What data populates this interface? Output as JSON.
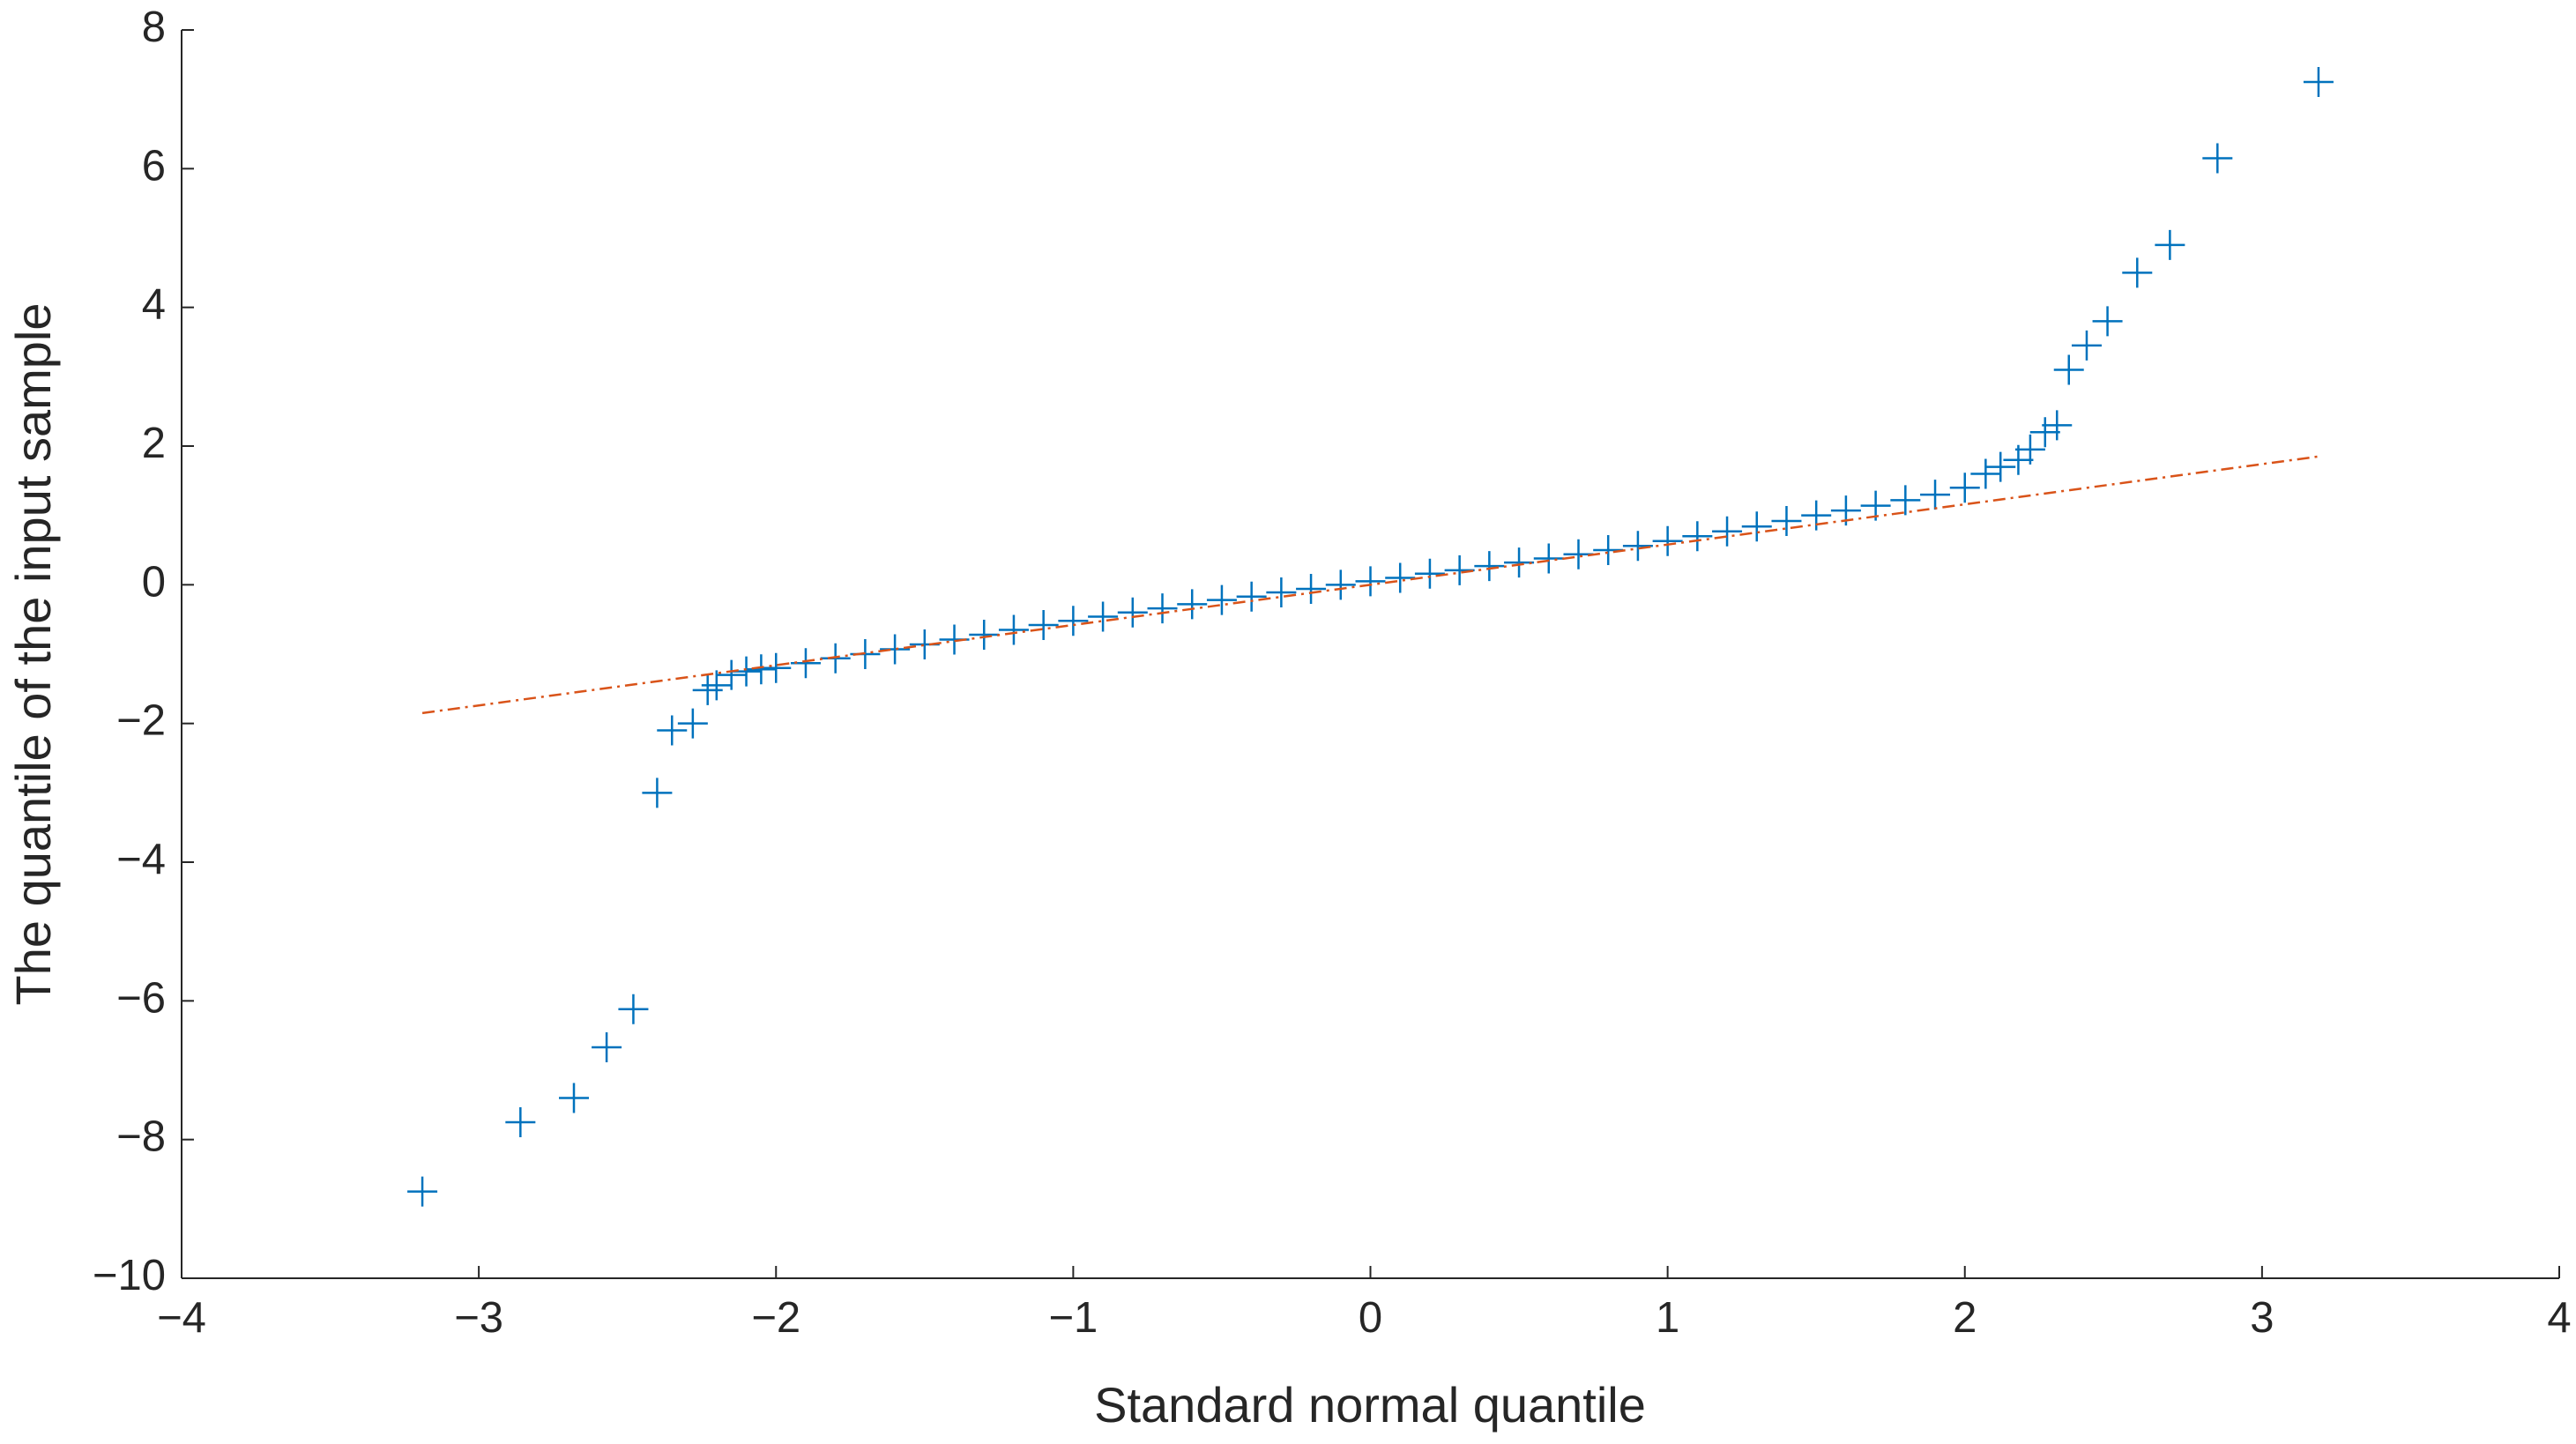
{
  "chart_data": {
    "type": "scatter",
    "xlabel": "Standard normal quantile",
    "ylabel": "The quantile of the input sample",
    "xlim": [
      -4,
      4
    ],
    "xticks": [
      {
        "value": -4,
        "label": "−4"
      },
      {
        "value": -3,
        "label": "−3"
      },
      {
        "value": -2,
        "label": "−2"
      },
      {
        "value": -1,
        "label": "−1"
      },
      0,
      1,
      2,
      3,
      4
    ],
    "ylim": [
      -10,
      8
    ],
    "yticks": [
      {
        "value": -10,
        "label": "−10"
      },
      {
        "value": -8,
        "label": "−8"
      },
      {
        "value": -6,
        "label": "−6"
      },
      {
        "value": -4,
        "label": "−4"
      },
      {
        "value": -2,
        "label": "−2"
      },
      0,
      2,
      4,
      6,
      8
    ],
    "series": [
      {
        "color": "#0072bd",
        "marker": "+",
        "x": [
          -3.19,
          -2.86,
          -2.68,
          -2.57,
          -2.48,
          -2.4,
          -2.35,
          -2.28,
          -2.23,
          -2.2,
          -2.15,
          -2.1,
          -2.05,
          -2.0,
          -1.9,
          -1.8,
          -1.7,
          -1.6,
          -1.5,
          -1.4,
          -1.3,
          -1.2,
          -1.1,
          -1.0,
          -0.9,
          -0.8,
          -0.7,
          -0.6,
          -0.5,
          -0.4,
          -0.3,
          -0.2,
          -0.1,
          0,
          0.1,
          0.2,
          0.3,
          0.4,
          0.5,
          0.6,
          0.7,
          0.8,
          0.9,
          1.0,
          1.1,
          1.2,
          1.3,
          1.4,
          1.5,
          1.6,
          1.7,
          1.8,
          1.9,
          2.0,
          2.07,
          2.12,
          2.18,
          2.22,
          2.27,
          2.31,
          2.35,
          2.41,
          2.48,
          2.58,
          2.69,
          2.85,
          3.19
        ],
        "values": [
          -8.75,
          -7.75,
          -7.4,
          -6.67,
          -6.12,
          -3.0,
          -2.1,
          -2.0,
          -1.52,
          -1.45,
          -1.3,
          -1.25,
          -1.22,
          -1.2,
          -1.13,
          -1.06,
          -1.0,
          -0.93,
          -0.86,
          -0.79,
          -0.72,
          -0.65,
          -0.58,
          -0.52,
          -0.46,
          -0.4,
          -0.34,
          -0.28,
          -0.22,
          -0.17,
          -0.11,
          -0.06,
          0.0,
          0.05,
          0.1,
          0.16,
          0.21,
          0.27,
          0.32,
          0.38,
          0.44,
          0.5,
          0.56,
          0.63,
          0.7,
          0.77,
          0.84,
          0.92,
          1.0,
          1.07,
          1.14,
          1.22,
          1.3,
          1.4,
          1.6,
          1.7,
          1.8,
          1.95,
          2.2,
          2.3,
          3.1,
          3.45,
          3.8,
          4.5,
          4.9,
          6.15,
          7.25
        ]
      },
      {
        "color": "#d95319",
        "style": "dash-dot",
        "x": [
          -3.19,
          3.19
        ],
        "values": [
          -1.85,
          1.85
        ]
      }
    ]
  }
}
